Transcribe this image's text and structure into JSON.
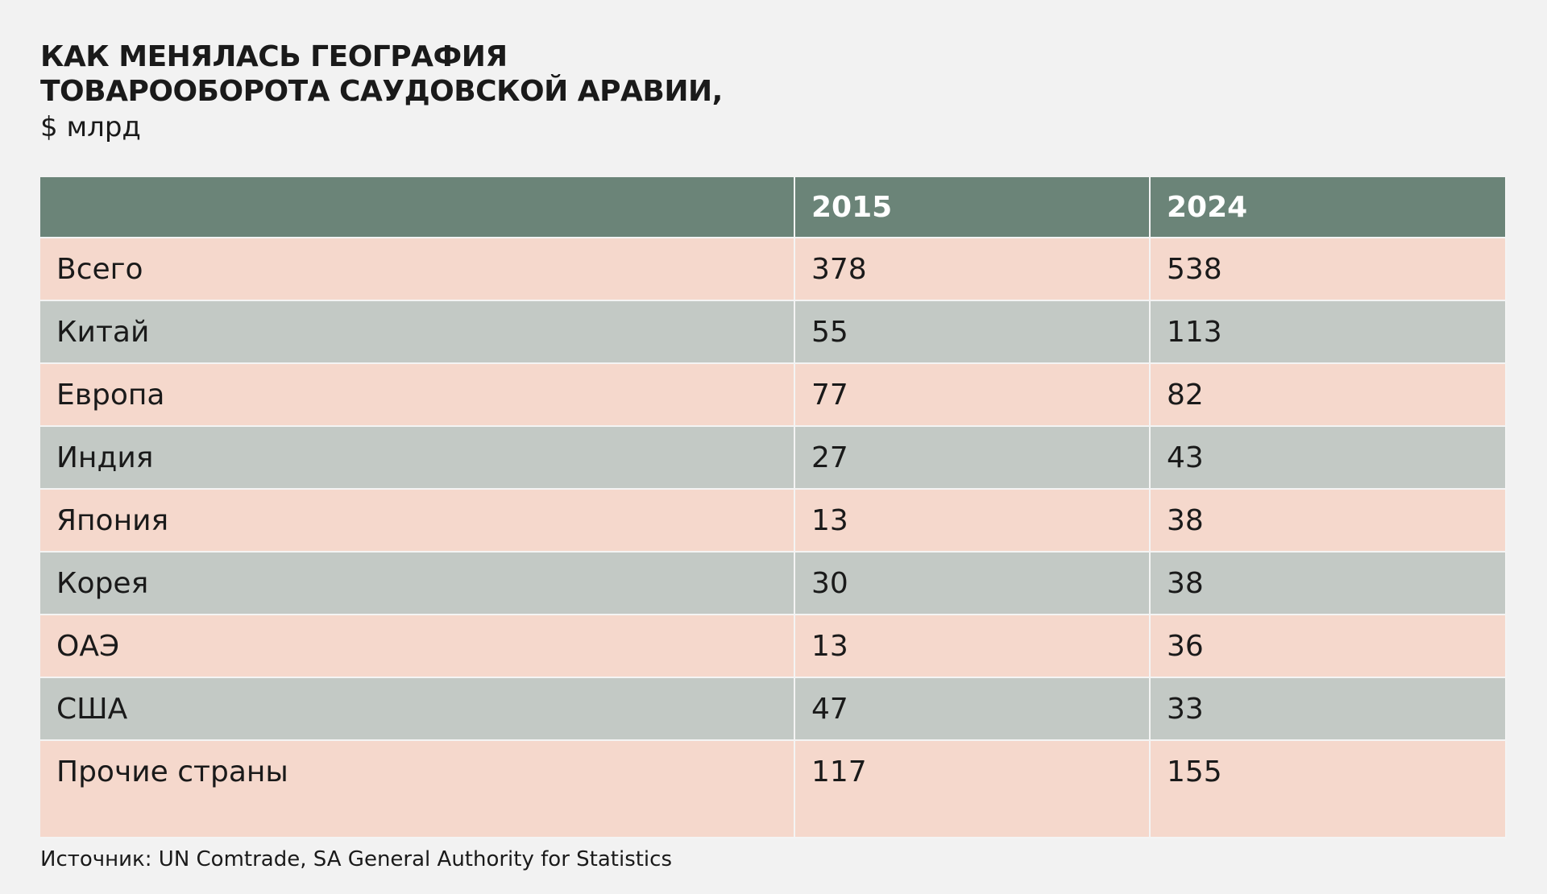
{
  "header": {
    "title": [
      "КАК МЕНЯЛАСЬ ГЕОГРАФИЯ",
      "ТОВАРООБОРОТА САУДОВСКОЙ АРАВИИ,"
    ],
    "subtitle": "$ млрд"
  },
  "table": {
    "columns": [
      "2015",
      "2024"
    ],
    "rows": [
      [
        "Всего",
        378,
        538
      ],
      [
        "Китай",
        55,
        113
      ],
      [
        "Европа",
        77,
        82
      ],
      [
        "Индия",
        27,
        43
      ],
      [
        "Япония",
        13,
        38
      ],
      [
        "Корея",
        30,
        38
      ],
      [
        "ОАЭ",
        13,
        36
      ],
      [
        "США",
        47,
        33
      ],
      [
        "Прочие страны",
        117,
        155
      ]
    ]
  },
  "source": "Источник: UN Comtrade, SA General Authority for Statistics"
}
